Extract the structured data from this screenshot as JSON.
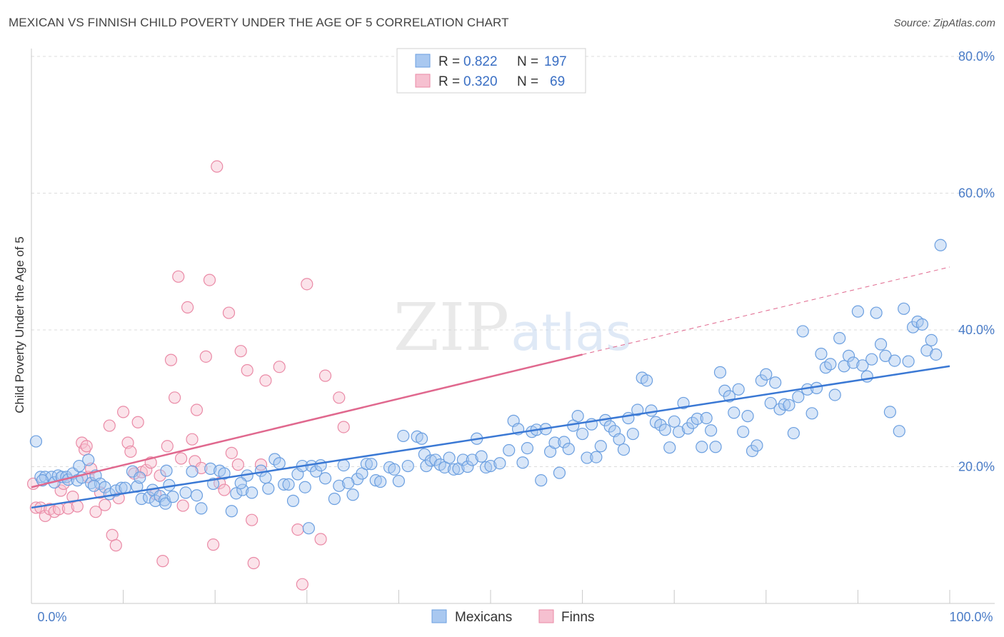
{
  "header": {
    "title": "MEXICAN VS FINNISH CHILD POVERTY UNDER THE AGE OF 5 CORRELATION CHART",
    "source": "Source: ZipAtlas.com"
  },
  "watermark": {
    "zip": "ZIP",
    "atlas": "atlas"
  },
  "colors": {
    "blue_fill": "#a9c8f0",
    "blue_stroke": "#6b9fe0",
    "blue_line": "#3a78d4",
    "pink_fill": "#f6c0d0",
    "pink_stroke": "#ea8aa6",
    "pink_line": "#e0688e",
    "tick": "#4a7cc7",
    "grid": "#dcdcdc"
  },
  "stats_legend": [
    {
      "r_label": "R =",
      "r_value": "0.822",
      "n_label": "N =",
      "n_value": "197"
    },
    {
      "r_label": "R =",
      "r_value": "0.320",
      "n_label": "N =",
      "n_value": "69"
    }
  ],
  "chart_data": {
    "type": "scatter",
    "title": "MEXICAN VS FINNISH CHILD POVERTY UNDER THE AGE OF 5 CORRELATION CHART",
    "xlabel": "",
    "ylabel": "Child Poverty Under the Age of 5",
    "xlim": [
      0,
      100
    ],
    "ylim": [
      0,
      80
    ],
    "x_tick_labels": [
      "0.0%",
      "100.0%"
    ],
    "y_ticks": [
      20,
      40,
      60,
      80
    ],
    "y_tick_labels": [
      "20.0%",
      "40.0%",
      "60.0%",
      "80.0%"
    ],
    "grid": true,
    "legend": {
      "position": "bottom-center",
      "entries": [
        "Mexicans",
        "Finns"
      ]
    },
    "series": [
      {
        "name": "Mexicans",
        "r": 0.822,
        "n": 197,
        "trend": {
          "x0": 0,
          "y0": 14.0,
          "x1": 100,
          "y1": 34.7
        },
        "points": [
          [
            0.5,
            23.7
          ],
          [
            1.0,
            18.5
          ],
          [
            1.5,
            18.5
          ],
          [
            2.2,
            18.5
          ],
          [
            2.5,
            17.7
          ],
          [
            2.9,
            18.7
          ],
          [
            3.3,
            18.5
          ],
          [
            3.8,
            18.5
          ],
          [
            4.0,
            18.1
          ],
          [
            4.5,
            19.0
          ],
          [
            5.0,
            18.0
          ],
          [
            5.2,
            20.1
          ],
          [
            5.5,
            18.4
          ],
          [
            6.2,
            21.0
          ],
          [
            6.5,
            17.6
          ],
          [
            7.0,
            18.7
          ],
          [
            7.5,
            17.5
          ],
          [
            8.0,
            17.0
          ],
          [
            8.5,
            16.0
          ],
          [
            9.2,
            16.5
          ],
          [
            9.8,
            16.9
          ],
          [
            10.2,
            16.9
          ],
          [
            11.0,
            19.3
          ],
          [
            11.5,
            17.1
          ],
          [
            12.0,
            15.3
          ],
          [
            12.8,
            15.5
          ],
          [
            13.2,
            16.6
          ],
          [
            13.5,
            15.0
          ],
          [
            14.0,
            15.7
          ],
          [
            14.5,
            15.1
          ],
          [
            14.6,
            14.6
          ],
          [
            14.7,
            19.4
          ],
          [
            15.0,
            17.3
          ],
          [
            15.4,
            15.6
          ],
          [
            16.8,
            16.2
          ],
          [
            17.5,
            19.3
          ],
          [
            18.0,
            15.8
          ],
          [
            18.5,
            13.9
          ],
          [
            19.5,
            19.7
          ],
          [
            19.8,
            17.5
          ],
          [
            20.5,
            19.4
          ],
          [
            21.0,
            19.0
          ],
          [
            21.8,
            13.5
          ],
          [
            22.3,
            16.1
          ],
          [
            23.0,
            16.6
          ],
          [
            23.5,
            18.7
          ],
          [
            24.0,
            16.2
          ],
          [
            25.0,
            19.4
          ],
          [
            25.5,
            18.4
          ],
          [
            25.8,
            16.8
          ],
          [
            26.5,
            21.1
          ],
          [
            27.0,
            20.5
          ],
          [
            27.5,
            17.4
          ],
          [
            28.0,
            17.4
          ],
          [
            28.5,
            15.0
          ],
          [
            29.0,
            18.9
          ],
          [
            29.5,
            20.1
          ],
          [
            29.8,
            17.0
          ],
          [
            30.2,
            11.0
          ],
          [
            30.5,
            20.1
          ],
          [
            31.0,
            19.3
          ],
          [
            31.5,
            20.2
          ],
          [
            32.0,
            18.3
          ],
          [
            33.0,
            15.3
          ],
          [
            33.5,
            17.2
          ],
          [
            34.0,
            20.2
          ],
          [
            35.0,
            15.9
          ],
          [
            35.5,
            18.2
          ],
          [
            36.0,
            19.0
          ],
          [
            36.5,
            20.4
          ],
          [
            37.0,
            20.4
          ],
          [
            37.5,
            18.0
          ],
          [
            38.0,
            17.8
          ],
          [
            39.0,
            19.9
          ],
          [
            39.5,
            19.6
          ],
          [
            40.0,
            17.9
          ],
          [
            40.5,
            24.5
          ],
          [
            41.0,
            20.1
          ],
          [
            42.0,
            24.4
          ],
          [
            42.5,
            24.1
          ],
          [
            42.8,
            21.8
          ],
          [
            43.0,
            20.1
          ],
          [
            43.5,
            20.9
          ],
          [
            44.0,
            21.0
          ],
          [
            44.5,
            20.3
          ],
          [
            45.0,
            19.9
          ],
          [
            45.5,
            21.3
          ],
          [
            46.0,
            19.6
          ],
          [
            46.5,
            19.7
          ],
          [
            47.0,
            21.0
          ],
          [
            47.5,
            20.0
          ],
          [
            48.0,
            21.0
          ],
          [
            48.5,
            24.1
          ],
          [
            49.0,
            21.5
          ],
          [
            49.5,
            19.9
          ],
          [
            50.0,
            20.1
          ],
          [
            51.0,
            20.5
          ],
          [
            52.0,
            22.4
          ],
          [
            52.5,
            26.7
          ],
          [
            53.0,
            25.5
          ],
          [
            53.5,
            20.6
          ],
          [
            54.0,
            22.7
          ],
          [
            54.5,
            25.1
          ],
          [
            55.0,
            25.4
          ],
          [
            55.5,
            18.0
          ],
          [
            56.0,
            25.5
          ],
          [
            56.5,
            22.2
          ],
          [
            57.0,
            23.5
          ],
          [
            57.5,
            19.1
          ],
          [
            58.0,
            23.6
          ],
          [
            58.5,
            22.6
          ],
          [
            59.0,
            26.0
          ],
          [
            59.5,
            27.4
          ],
          [
            60.0,
            24.8
          ],
          [
            60.5,
            21.3
          ],
          [
            61.0,
            26.2
          ],
          [
            61.5,
            21.4
          ],
          [
            62.0,
            23.0
          ],
          [
            62.5,
            26.8
          ],
          [
            63.0,
            25.9
          ],
          [
            63.5,
            25.2
          ],
          [
            64.0,
            24.0
          ],
          [
            64.5,
            22.5
          ],
          [
            65.0,
            27.1
          ],
          [
            65.5,
            24.8
          ],
          [
            66.0,
            28.3
          ],
          [
            66.5,
            33.0
          ],
          [
            67.0,
            32.6
          ],
          [
            67.5,
            28.2
          ],
          [
            68.0,
            26.5
          ],
          [
            68.5,
            26.1
          ],
          [
            69.0,
            25.4
          ],
          [
            69.5,
            22.8
          ],
          [
            70.0,
            26.6
          ],
          [
            70.5,
            25.1
          ],
          [
            71.0,
            29.3
          ],
          [
            71.5,
            25.6
          ],
          [
            72.0,
            26.4
          ],
          [
            72.5,
            27.0
          ],
          [
            73.0,
            22.9
          ],
          [
            73.5,
            27.1
          ],
          [
            74.0,
            25.3
          ],
          [
            74.5,
            22.9
          ],
          [
            75.0,
            33.8
          ],
          [
            75.5,
            31.1
          ],
          [
            76.0,
            30.3
          ],
          [
            76.5,
            27.9
          ],
          [
            77.0,
            31.3
          ],
          [
            77.5,
            25.1
          ],
          [
            78.0,
            27.4
          ],
          [
            78.5,
            22.3
          ],
          [
            79.0,
            23.1
          ],
          [
            79.5,
            32.6
          ],
          [
            80.0,
            33.5
          ],
          [
            80.5,
            29.3
          ],
          [
            81.0,
            32.3
          ],
          [
            81.5,
            28.4
          ],
          [
            82.0,
            29.1
          ],
          [
            82.5,
            29.0
          ],
          [
            83.0,
            24.9
          ],
          [
            83.5,
            30.2
          ],
          [
            84.0,
            39.8
          ],
          [
            84.5,
            31.3
          ],
          [
            85.0,
            27.8
          ],
          [
            85.5,
            31.5
          ],
          [
            86.0,
            36.5
          ],
          [
            86.5,
            34.5
          ],
          [
            87.0,
            35.0
          ],
          [
            87.5,
            30.5
          ],
          [
            88.0,
            38.8
          ],
          [
            88.5,
            34.7
          ],
          [
            89.0,
            36.2
          ],
          [
            89.5,
            35.2
          ],
          [
            90.0,
            42.7
          ],
          [
            90.5,
            34.8
          ],
          [
            91.0,
            33.2
          ],
          [
            91.5,
            35.7
          ],
          [
            92.0,
            42.5
          ],
          [
            92.5,
            37.9
          ],
          [
            93.0,
            36.2
          ],
          [
            93.5,
            28.0
          ],
          [
            94.0,
            35.5
          ],
          [
            94.5,
            25.2
          ],
          [
            95.0,
            43.1
          ],
          [
            95.5,
            35.4
          ],
          [
            96.0,
            40.4
          ],
          [
            96.5,
            41.2
          ],
          [
            97.0,
            40.8
          ],
          [
            97.5,
            37.0
          ],
          [
            98.0,
            38.5
          ],
          [
            98.5,
            36.4
          ],
          [
            99.0,
            52.4
          ],
          [
            1.2,
            18.0
          ],
          [
            6.8,
            17.2
          ],
          [
            11.8,
            18.4
          ],
          [
            22.8,
            17.6
          ],
          [
            34.5,
            17.6
          ]
        ]
      },
      {
        "name": "Finns",
        "r": 0.32,
        "n": 69,
        "trend": {
          "x0": 0,
          "y0": 17.0,
          "x1": 60,
          "y1": 36.4,
          "dash_to_x": 100,
          "dash_to_y": 49.2
        },
        "points": [
          [
            0.2,
            17.5
          ],
          [
            0.5,
            14.0
          ],
          [
            1.0,
            14.0
          ],
          [
            1.5,
            12.8
          ],
          [
            2.0,
            13.8
          ],
          [
            2.5,
            13.4
          ],
          [
            3.0,
            13.8
          ],
          [
            3.2,
            16.5
          ],
          [
            3.5,
            17.5
          ],
          [
            4.0,
            13.9
          ],
          [
            4.5,
            15.6
          ],
          [
            5.0,
            14.2
          ],
          [
            5.5,
            23.5
          ],
          [
            5.8,
            22.5
          ],
          [
            6.0,
            23.0
          ],
          [
            6.2,
            18.5
          ],
          [
            6.5,
            19.7
          ],
          [
            7.0,
            13.4
          ],
          [
            7.5,
            16.2
          ],
          [
            8.0,
            14.4
          ],
          [
            8.5,
            26.0
          ],
          [
            8.8,
            10.0
          ],
          [
            9.2,
            8.5
          ],
          [
            9.5,
            15.4
          ],
          [
            10.0,
            28.0
          ],
          [
            10.5,
            23.5
          ],
          [
            10.8,
            22.2
          ],
          [
            11.2,
            19.0
          ],
          [
            11.6,
            26.5
          ],
          [
            12.0,
            19.2
          ],
          [
            12.5,
            19.5
          ],
          [
            13.0,
            20.6
          ],
          [
            13.5,
            16.0
          ],
          [
            14.0,
            18.7
          ],
          [
            14.3,
            6.2
          ],
          [
            14.8,
            23.0
          ],
          [
            15.2,
            35.6
          ],
          [
            15.6,
            30.1
          ],
          [
            16.0,
            47.8
          ],
          [
            16.3,
            21.2
          ],
          [
            16.5,
            14.3
          ],
          [
            17.0,
            43.3
          ],
          [
            17.5,
            24.0
          ],
          [
            17.8,
            20.8
          ],
          [
            18.0,
            28.3
          ],
          [
            18.5,
            19.8
          ],
          [
            19.0,
            36.1
          ],
          [
            19.4,
            47.3
          ],
          [
            19.8,
            8.6
          ],
          [
            20.2,
            63.9
          ],
          [
            20.5,
            17.6
          ],
          [
            21.0,
            16.6
          ],
          [
            21.5,
            42.5
          ],
          [
            21.8,
            22.0
          ],
          [
            22.5,
            20.3
          ],
          [
            22.8,
            36.9
          ],
          [
            23.5,
            34.1
          ],
          [
            24.0,
            12.2
          ],
          [
            24.2,
            5.9
          ],
          [
            25.0,
            20.3
          ],
          [
            25.5,
            32.6
          ],
          [
            27.0,
            34.6
          ],
          [
            29.0,
            10.8
          ],
          [
            29.5,
            2.8
          ],
          [
            30.0,
            46.7
          ],
          [
            31.5,
            9.4
          ],
          [
            32.0,
            33.3
          ],
          [
            33.5,
            30.1
          ],
          [
            34.0,
            25.8
          ]
        ]
      }
    ]
  },
  "bottom_legend": {
    "items": [
      "Mexicans",
      "Finns"
    ]
  }
}
